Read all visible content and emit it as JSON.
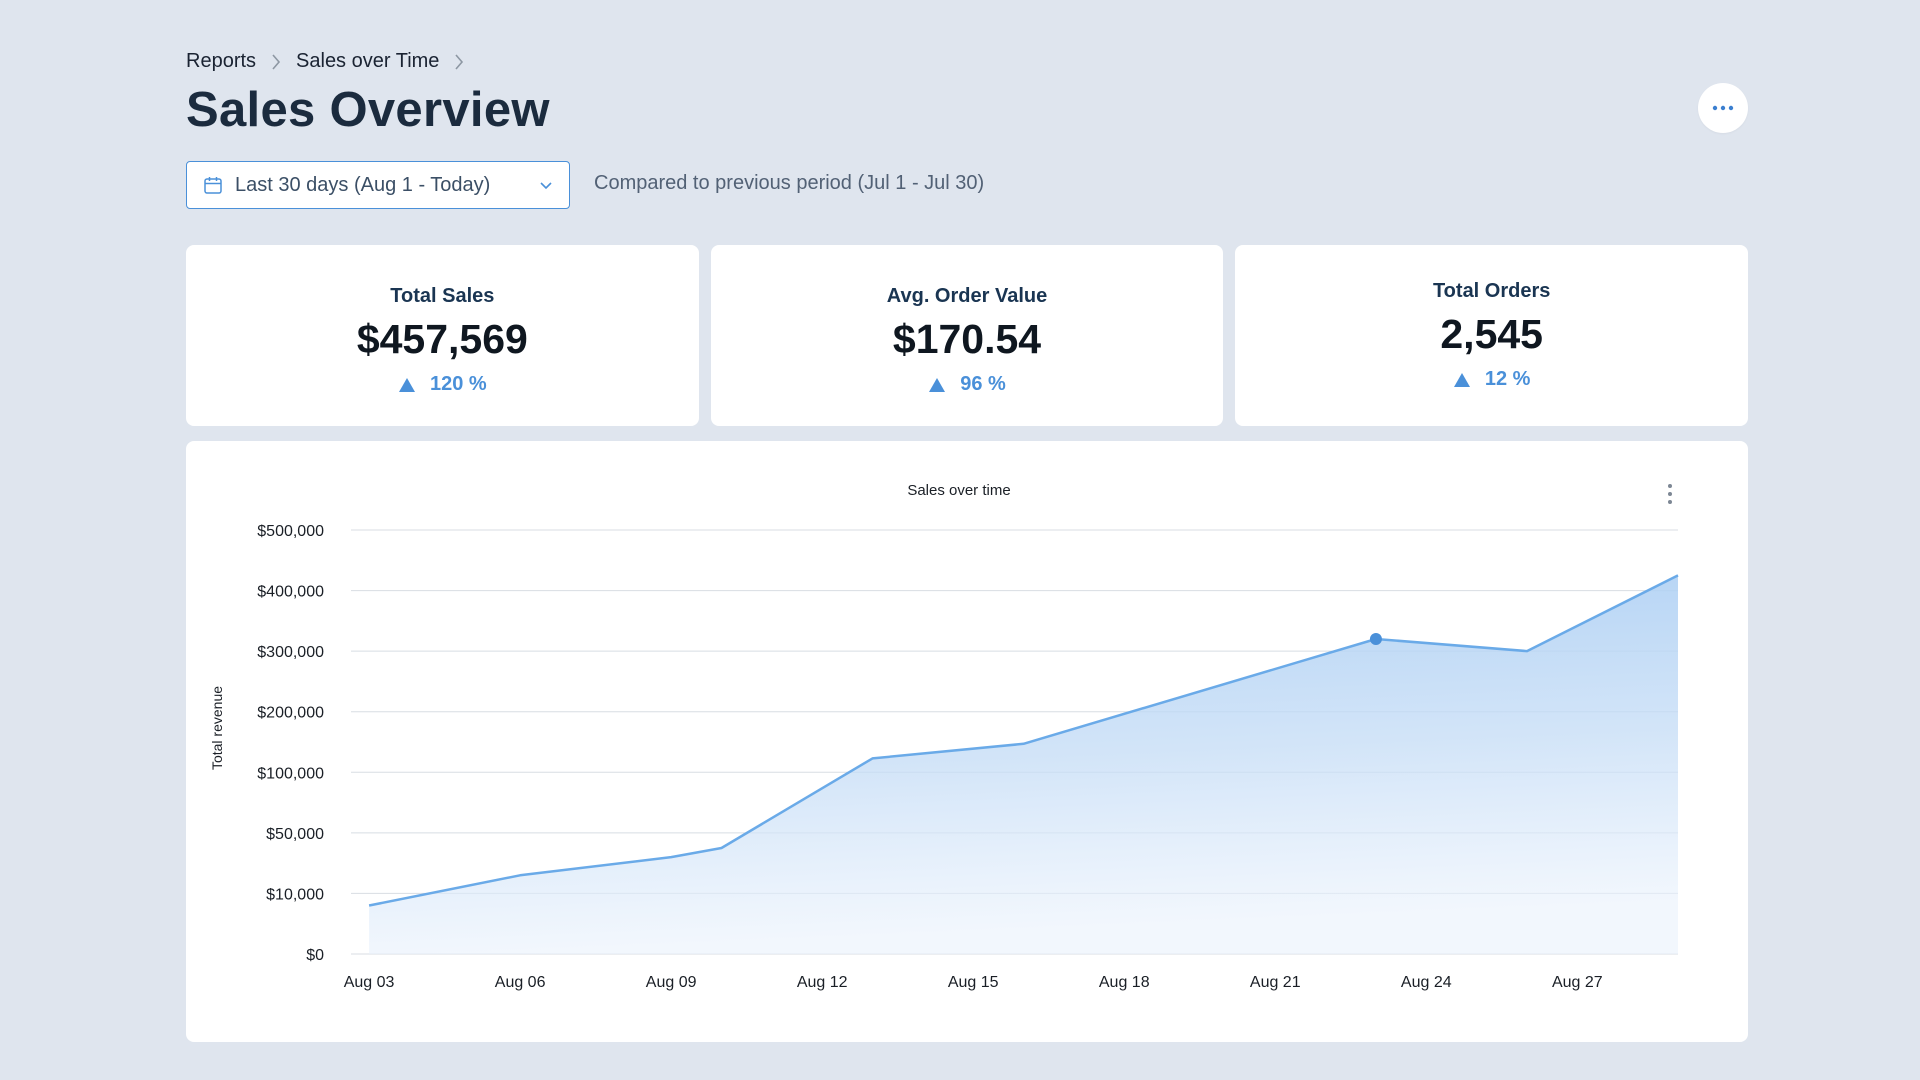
{
  "breadcrumb": {
    "items": [
      "Reports",
      "Sales over Time"
    ]
  },
  "page": {
    "title": "Sales Overview"
  },
  "filters": {
    "date_range": "Last 30 days (Aug 1 - Today)",
    "comparison": "Compared to previous period (Jul 1 - Jul 30)"
  },
  "kpis": [
    {
      "title": "Total Sales",
      "value": "$457,569",
      "change": "120 %"
    },
    {
      "title": "Avg. Order Value",
      "value": "$170.54",
      "change": "96 %"
    },
    {
      "title": "Total Orders",
      "value": "2,545",
      "change": "12 %"
    }
  ],
  "icons": {
    "more": "ellipsis-horizontal-icon",
    "calendar": "calendar-icon",
    "dropdown": "chevron-down-icon",
    "trend_up": "triangle-up-icon",
    "chart_menu": "ellipsis-vertical-icon",
    "breadcrumb_sep": "chevron-right-icon"
  },
  "colors": {
    "accent": "#4a90d9",
    "line": "#6aaae8",
    "area_top": "#a9cdf3",
    "background": "#dfe5ee"
  },
  "chart_data": {
    "type": "area",
    "title": "Sales over time",
    "xlabel": "",
    "ylabel": "Total revenue",
    "y_ticks": [
      "$0",
      "$10,000",
      "$50,000",
      "$100,000",
      "$200,000",
      "$300,000",
      "$400,000",
      "$500,000"
    ],
    "x_ticks": [
      "Aug 03",
      "Aug 06",
      "Aug 09",
      "Aug 12",
      "Aug 15",
      "Aug 18",
      "Aug 21",
      "Aug 24",
      "Aug 27"
    ],
    "grid": true,
    "highlighted_point": {
      "x": "Aug 23",
      "y": 320000
    },
    "series": [
      {
        "points": [
          {
            "x": "Aug 03",
            "y": 8000
          },
          {
            "x": "Aug 06",
            "y": 22000
          },
          {
            "x": "Aug 09",
            "y": 34000
          },
          {
            "x": "Aug 10",
            "y": 40000
          },
          {
            "x": "Aug 13",
            "y": 123000
          },
          {
            "x": "Aug 16",
            "y": 147000
          },
          {
            "x": "Aug 23",
            "y": 320000
          },
          {
            "x": "Aug 26",
            "y": 300000
          },
          {
            "x": "Aug 29",
            "y": 425000
          }
        ]
      }
    ]
  }
}
